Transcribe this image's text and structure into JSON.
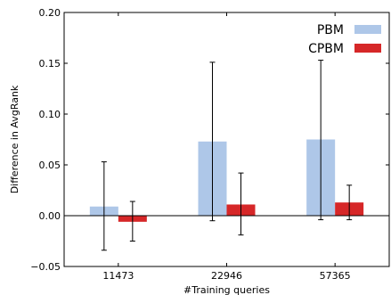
{
  "chart_data": {
    "type": "bar",
    "xlabel": "#Training queries",
    "ylabel": "Difference in AvgRank",
    "categories": [
      "11473",
      "22946",
      "57365"
    ],
    "ylim": [
      -0.05,
      0.2
    ],
    "yticks": [
      {
        "value": -0.05,
        "label": "−0.05"
      },
      {
        "value": 0.0,
        "label": "0.00"
      },
      {
        "value": 0.05,
        "label": "0.05"
      },
      {
        "value": 0.1,
        "label": "0.10"
      },
      {
        "value": 0.15,
        "label": "0.15"
      },
      {
        "value": 0.2,
        "label": "0.20"
      }
    ],
    "series": [
      {
        "name": "PBM",
        "color": "#aec7e8",
        "values": [
          0.009,
          0.073,
          0.075
        ],
        "error_low": [
          -0.034,
          -0.005,
          -0.004
        ],
        "error_high": [
          0.053,
          0.151,
          0.153
        ]
      },
      {
        "name": "CPBM",
        "color": "#d62728",
        "values": [
          -0.006,
          0.011,
          0.013
        ],
        "error_low": [
          -0.025,
          -0.019,
          -0.004
        ],
        "error_high": [
          0.014,
          0.042,
          0.03
        ]
      }
    ],
    "zero_line": true,
    "grid": false,
    "legend_position": "top-right"
  }
}
